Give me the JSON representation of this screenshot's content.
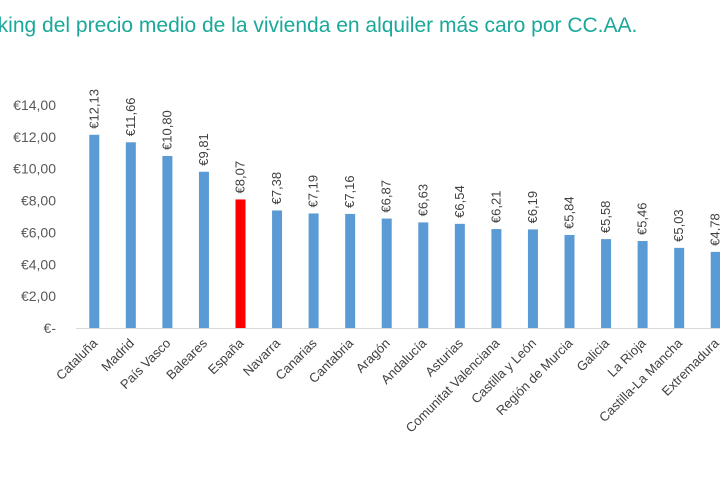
{
  "chart_data": {
    "type": "bar",
    "title": "Ranking del precio medio de la vivienda en alquiler más caro por CC.AA.",
    "visible_title": "nking del precio medio de la vivienda en alquiler más caro por CC.AA.",
    "categories": [
      "Cataluña",
      "Madrid",
      "País Vasco",
      "Baleares",
      "España",
      "Navarra",
      "Canarias",
      "Cantabria",
      "Aragón",
      "Andalucía",
      "Asturias",
      "Comunitat Valenciana",
      "Castilla y León",
      "Región de Murcia",
      "Galicia",
      "La Rioja",
      "Castilla-La Mancha",
      "Extremadura"
    ],
    "values": [
      12.13,
      11.66,
      10.8,
      9.81,
      8.07,
      7.38,
      7.19,
      7.16,
      6.87,
      6.63,
      6.54,
      6.21,
      6.19,
      5.84,
      5.58,
      5.46,
      5.03,
      4.78
    ],
    "data_labels": [
      "€12,13",
      "€11,66",
      "€10,80",
      "€9,81",
      "€8,07",
      "€7,38",
      "€7,19",
      "€7,16",
      "€6,87",
      "€6,63",
      "€6,54",
      "€6,21",
      "€6,19",
      "€5,84",
      "€5,58",
      "€5,46",
      "€5,03",
      "€4,78"
    ],
    "ylim": [
      0,
      14
    ],
    "yticks": [
      "€-",
      "€2,00",
      "€4,00",
      "€6,00",
      "€8,00",
      "€10,00",
      "€12,00",
      "€14,00"
    ],
    "xlabel": "",
    "ylabel": "",
    "highlight_index": 4,
    "colors": {
      "bar": "#5b9bd5",
      "highlight": "#ff0000",
      "title": "#1aa89a",
      "axis": "#d9d9d9"
    }
  }
}
